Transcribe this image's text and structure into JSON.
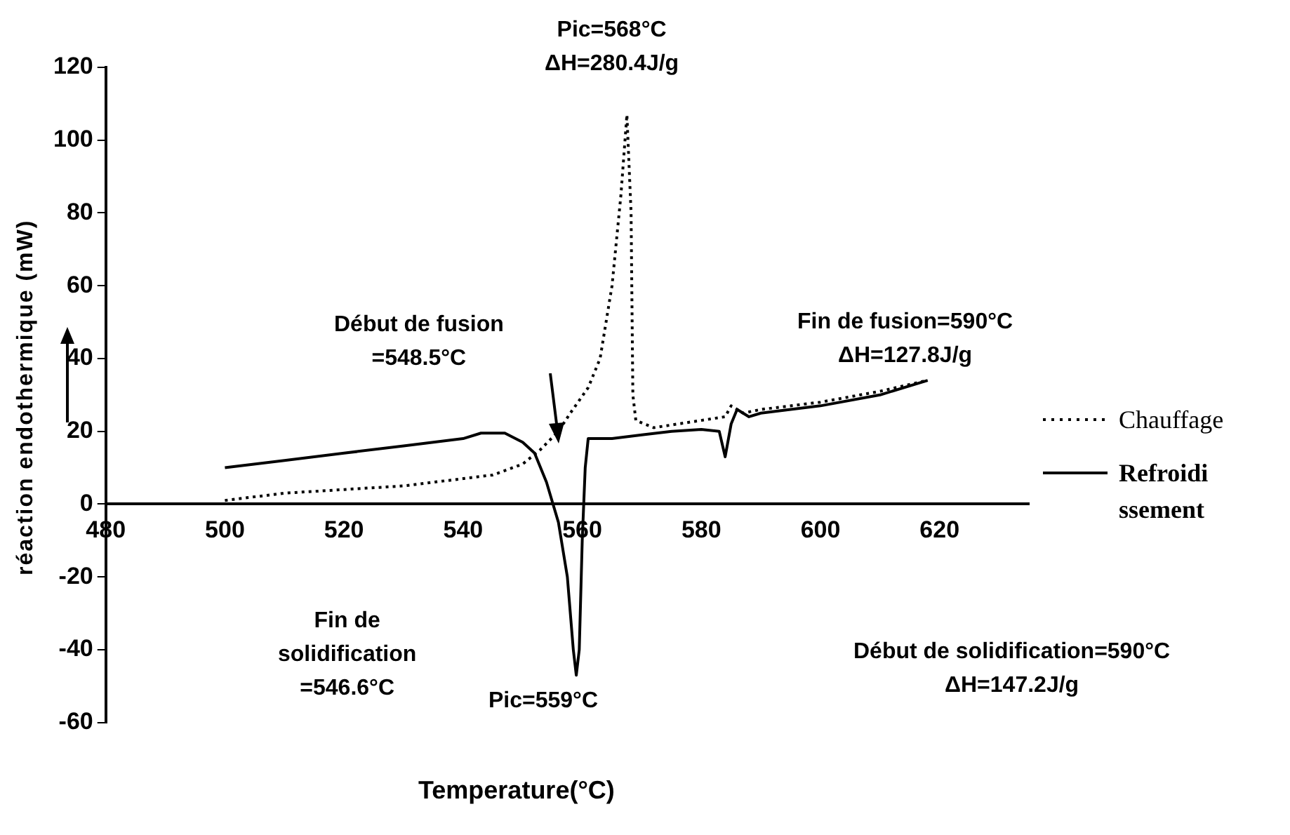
{
  "chart_data": {
    "type": "line",
    "xlabel": "Temperature(°C)",
    "ylabel": "réaction endothermique (mW)",
    "xlim": [
      480,
      635
    ],
    "xticks": [
      480,
      500,
      520,
      540,
      560,
      580,
      600,
      620
    ],
    "ylim": [
      -60,
      120
    ],
    "yticks": [
      -60,
      -40,
      -20,
      0,
      20,
      40,
      60,
      80,
      100,
      120
    ],
    "grid": false,
    "legend": "right",
    "marker": "none",
    "annotations": [
      "Pic=568°C\nΔH=280.4J/g",
      "Début de fusion\n=548.5°C",
      "Fin de fusion=590°C\nΔH=127.8J/g",
      "Fin de\nsolidification\n=546.6°C",
      "Pic=559°C",
      "Début de solidification=590°C\nΔH=147.2J/g"
    ],
    "series": [
      {
        "name": "Chauffage",
        "color": "#000000",
        "line_style": "dotted",
        "x": [
          500,
          510,
          520,
          530,
          540,
          545,
          550,
          553,
          556,
          558,
          561,
          563,
          565,
          566.5,
          567.5,
          568.2,
          568.5,
          569,
          572,
          576,
          580,
          584,
          585,
          587,
          590,
          600,
          610,
          618
        ],
        "values": [
          1,
          3,
          4,
          5,
          7,
          8,
          11,
          15,
          20,
          25,
          32,
          40,
          60,
          85,
          107,
          80,
          30,
          23,
          21,
          22,
          23,
          24,
          27,
          25,
          26,
          28,
          31,
          34
        ]
      },
      {
        "name": "Refroidissement",
        "color": "#000000",
        "line_style": "solid",
        "x": [
          500,
          510,
          520,
          530,
          540,
          543,
          547,
          550,
          552,
          554,
          556,
          557.5,
          558.5,
          559,
          559.5,
          560,
          560.5,
          561,
          565,
          570,
          575,
          580,
          583,
          584,
          585,
          586,
          588,
          590,
          600,
          610,
          618
        ],
        "values": [
          10,
          12,
          14,
          16,
          18,
          19.5,
          19.5,
          17,
          14,
          6,
          -5,
          -20,
          -40,
          -47,
          -40,
          -10,
          10,
          18,
          18,
          19,
          20,
          20.5,
          20,
          13,
          22,
          26,
          24,
          25,
          27,
          30,
          34
        ]
      }
    ]
  }
}
